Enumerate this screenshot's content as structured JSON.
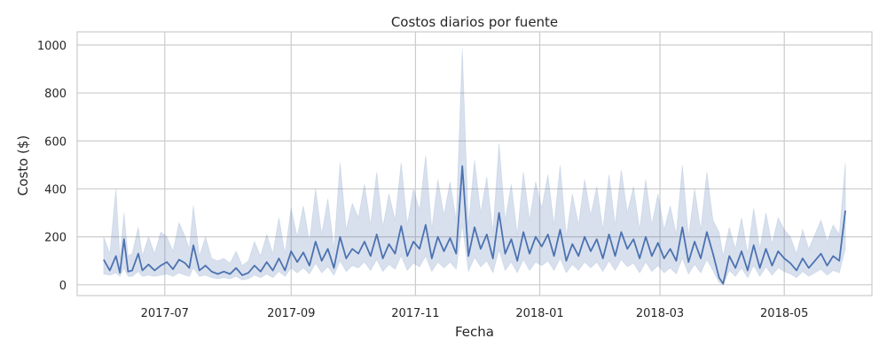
{
  "chart_data": {
    "type": "line",
    "title": "Costos diarios por fuente",
    "xlabel": "Fecha",
    "ylabel": "Costo ($)",
    "x_range": [
      "2017-05-19",
      "2018-06-13"
    ],
    "ylim": [
      -45,
      1055
    ],
    "x_ticks": [
      {
        "date": "2017-07-01",
        "label": "2017-07"
      },
      {
        "date": "2017-09-01",
        "label": "2017-09"
      },
      {
        "date": "2017-11-01",
        "label": "2017-11"
      },
      {
        "date": "2018-01-01",
        "label": "2018-01"
      },
      {
        "date": "2018-03-01",
        "label": "2018-03"
      },
      {
        "date": "2018-05-01",
        "label": "2018-05"
      }
    ],
    "y_ticks": [
      0,
      200,
      400,
      600,
      800,
      1000
    ],
    "grid": true,
    "colors": {
      "line": "#4c72b0",
      "band": "#4c72b0",
      "grid": "#cccccc",
      "axis": "#cccccc"
    },
    "series": [
      {
        "x": [
          "2017-06-01",
          "2017-06-04",
          "2017-06-07",
          "2017-06-09",
          "2017-06-11",
          "2017-06-13",
          "2017-06-15",
          "2017-06-18",
          "2017-06-20",
          "2017-06-23",
          "2017-06-26",
          "2017-06-29",
          "2017-07-02",
          "2017-07-05",
          "2017-07-08",
          "2017-07-11",
          "2017-07-13",
          "2017-07-15",
          "2017-07-18",
          "2017-07-21",
          "2017-07-24",
          "2017-07-27",
          "2017-07-30",
          "2017-08-02",
          "2017-08-05",
          "2017-08-08",
          "2017-08-11",
          "2017-08-14",
          "2017-08-17",
          "2017-08-20",
          "2017-08-23",
          "2017-08-26",
          "2017-08-29",
          "2017-09-01",
          "2017-09-04",
          "2017-09-07",
          "2017-09-10",
          "2017-09-13",
          "2017-09-16",
          "2017-09-19",
          "2017-09-22",
          "2017-09-25",
          "2017-09-28",
          "2017-10-01",
          "2017-10-04",
          "2017-10-07",
          "2017-10-10",
          "2017-10-13",
          "2017-10-16",
          "2017-10-19",
          "2017-10-22",
          "2017-10-25",
          "2017-10-28",
          "2017-10-31",
          "2017-11-03",
          "2017-11-06",
          "2017-11-09",
          "2017-11-12",
          "2017-11-15",
          "2017-11-18",
          "2017-11-21",
          "2017-11-24",
          "2017-11-27",
          "2017-11-30",
          "2017-12-03",
          "2017-12-06",
          "2017-12-09",
          "2017-12-12",
          "2017-12-15",
          "2017-12-18",
          "2017-12-21",
          "2017-12-24",
          "2017-12-27",
          "2017-12-30",
          "2018-01-02",
          "2018-01-05",
          "2018-01-08",
          "2018-01-11",
          "2018-01-14",
          "2018-01-17",
          "2018-01-20",
          "2018-01-23",
          "2018-01-26",
          "2018-01-29",
          "2018-02-01",
          "2018-02-04",
          "2018-02-07",
          "2018-02-10",
          "2018-02-13",
          "2018-02-16",
          "2018-02-19",
          "2018-02-22",
          "2018-02-25",
          "2018-02-28",
          "2018-03-03",
          "2018-03-06",
          "2018-03-09",
          "2018-03-12",
          "2018-03-15",
          "2018-03-18",
          "2018-03-21",
          "2018-03-24",
          "2018-03-27",
          "2018-03-30",
          "2018-04-01",
          "2018-04-04",
          "2018-04-07",
          "2018-04-10",
          "2018-04-13",
          "2018-04-16",
          "2018-04-19",
          "2018-04-22",
          "2018-04-25",
          "2018-04-28",
          "2018-05-01",
          "2018-05-04",
          "2018-05-07",
          "2018-05-10",
          "2018-05-13",
          "2018-05-16",
          "2018-05-19",
          "2018-05-22",
          "2018-05-25",
          "2018-05-28",
          "2018-05-31"
        ],
        "y": [
          105,
          60,
          120,
          50,
          190,
          55,
          60,
          130,
          60,
          85,
          60,
          80,
          95,
          65,
          105,
          90,
          70,
          165,
          60,
          80,
          55,
          45,
          55,
          45,
          70,
          40,
          50,
          80,
          55,
          95,
          60,
          110,
          60,
          140,
          95,
          135,
          80,
          180,
          100,
          150,
          70,
          200,
          110,
          150,
          130,
          180,
          120,
          210,
          110,
          170,
          130,
          245,
          120,
          180,
          150,
          250,
          110,
          200,
          140,
          195,
          130,
          495,
          120,
          240,
          150,
          210,
          110,
          300,
          130,
          190,
          100,
          220,
          130,
          200,
          160,
          210,
          120,
          230,
          100,
          170,
          120,
          200,
          140,
          190,
          110,
          210,
          120,
          220,
          150,
          190,
          110,
          200,
          120,
          175,
          110,
          150,
          100,
          240,
          95,
          180,
          110,
          220,
          130,
          30,
          5,
          120,
          70,
          140,
          60,
          165,
          70,
          150,
          80,
          140,
          110,
          90,
          60,
          110,
          70,
          100,
          130,
          80,
          120,
          100,
          310
        ],
        "lower": [
          45,
          40,
          50,
          35,
          70,
          35,
          35,
          55,
          35,
          40,
          35,
          40,
          45,
          35,
          50,
          40,
          35,
          70,
          35,
          40,
          30,
          25,
          30,
          25,
          35,
          20,
          25,
          40,
          30,
          45,
          30,
          55,
          35,
          70,
          50,
          70,
          45,
          90,
          50,
          75,
          40,
          100,
          55,
          80,
          70,
          95,
          60,
          105,
          55,
          85,
          65,
          120,
          60,
          90,
          75,
          120,
          55,
          95,
          70,
          95,
          65,
          250,
          55,
          115,
          75,
          100,
          50,
          145,
          60,
          95,
          50,
          105,
          60,
          95,
          80,
          100,
          60,
          110,
          50,
          85,
          60,
          95,
          70,
          95,
          55,
          100,
          60,
          105,
          75,
          90,
          50,
          95,
          55,
          80,
          50,
          70,
          45,
          110,
          45,
          85,
          50,
          105,
          60,
          10,
          0,
          60,
          35,
          70,
          30,
          80,
          35,
          75,
          40,
          70,
          55,
          45,
          30,
          55,
          35,
          50,
          65,
          40,
          60,
          50,
          150
        ],
        "upper": [
          200,
          130,
          400,
          110,
          300,
          120,
          130,
          240,
          120,
          200,
          130,
          220,
          200,
          140,
          260,
          200,
          150,
          330,
          120,
          200,
          110,
          100,
          110,
          90,
          140,
          80,
          100,
          180,
          120,
          210,
          130,
          280,
          130,
          320,
          200,
          330,
          180,
          400,
          210,
          360,
          150,
          510,
          230,
          340,
          280,
          420,
          250,
          470,
          240,
          380,
          270,
          510,
          250,
          400,
          310,
          540,
          230,
          440,
          290,
          430,
          270,
          985,
          250,
          520,
          300,
          450,
          220,
          590,
          270,
          420,
          210,
          470,
          270,
          430,
          320,
          460,
          250,
          500,
          200,
          380,
          250,
          440,
          290,
          410,
          230,
          460,
          250,
          480,
          300,
          410,
          230,
          440,
          250,
          380,
          230,
          330,
          210,
          500,
          200,
          400,
          230,
          470,
          270,
          220,
          120,
          240,
          150,
          280,
          130,
          320,
          150,
          300,
          170,
          280,
          230,
          200,
          130,
          230,
          150,
          210,
          270,
          180,
          250,
          210,
          510
        ]
      }
    ]
  }
}
